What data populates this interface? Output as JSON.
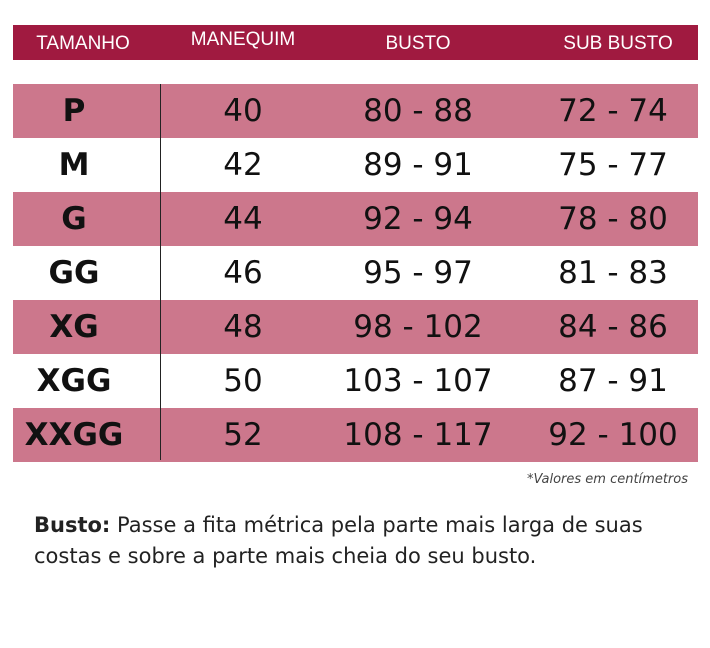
{
  "header": {
    "columns": [
      "TAMANHO",
      "MANEQUIM",
      "BUSTO",
      "SUB BUSTO"
    ]
  },
  "colors": {
    "header": "#a01a40",
    "row_alt": "#cc778c"
  },
  "rows": [
    {
      "size": "P",
      "manequim": "40",
      "busto": "80 - 88",
      "sub_busto": "72 - 74"
    },
    {
      "size": "M",
      "manequim": "42",
      "busto": "89 - 91",
      "sub_busto": "75 - 77"
    },
    {
      "size": "G",
      "manequim": "44",
      "busto": "92 - 94",
      "sub_busto": "78 - 80"
    },
    {
      "size": "GG",
      "manequim": "46",
      "busto": "95 - 97",
      "sub_busto": "81 - 83"
    },
    {
      "size": "XG",
      "manequim": "48",
      "busto": "98 - 102",
      "sub_busto": "84 - 86"
    },
    {
      "size": "XGG",
      "manequim": "50",
      "busto": "103 - 107",
      "sub_busto": "87 - 91"
    },
    {
      "size": "XXGG",
      "manequim": "52",
      "busto": "108 - 117",
      "sub_busto": "92 - 100"
    }
  ],
  "note": "*Valores em centímetros",
  "description": {
    "label": "Busto:",
    "text": " Passe a fita métrica pela parte mais larga de suas costas e sobre a parte mais cheia do seu busto."
  }
}
